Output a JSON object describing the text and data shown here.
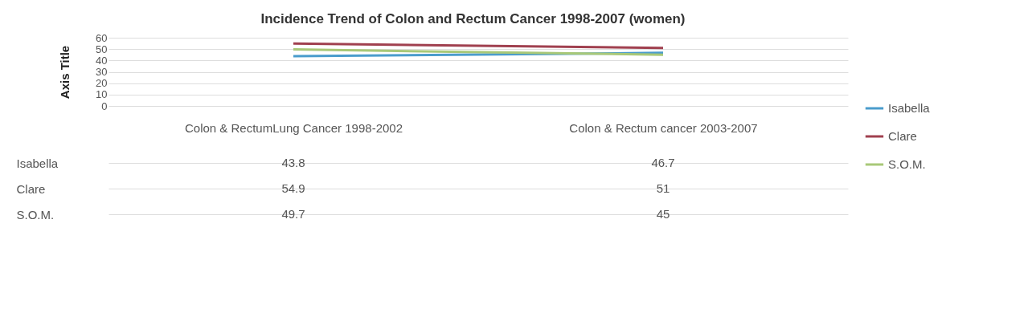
{
  "chart_data": {
    "type": "line",
    "title": "Incidence Trend of Colon and Rectum Cancer 1998-2007 (women)",
    "ylabel": "Axis Title",
    "categories": [
      "Colon & RectumLung Cancer 1998-2002",
      "Colon & Rectum cancer 2003-2007"
    ],
    "series": [
      {
        "name": "Isabella",
        "color": "#4a9ccc",
        "values": [
          43.8,
          46.7
        ]
      },
      {
        "name": "Clare",
        "color": "#a0404f",
        "values": [
          54.9,
          51
        ]
      },
      {
        "name": "S.O.M.",
        "color": "#a8c878",
        "values": [
          49.7,
          45
        ]
      }
    ],
    "ylim": [
      0,
      60
    ],
    "yticks": [
      0,
      10,
      20,
      30,
      40,
      50,
      60
    ],
    "grid": "y",
    "legend": "right",
    "data_labels": true
  }
}
